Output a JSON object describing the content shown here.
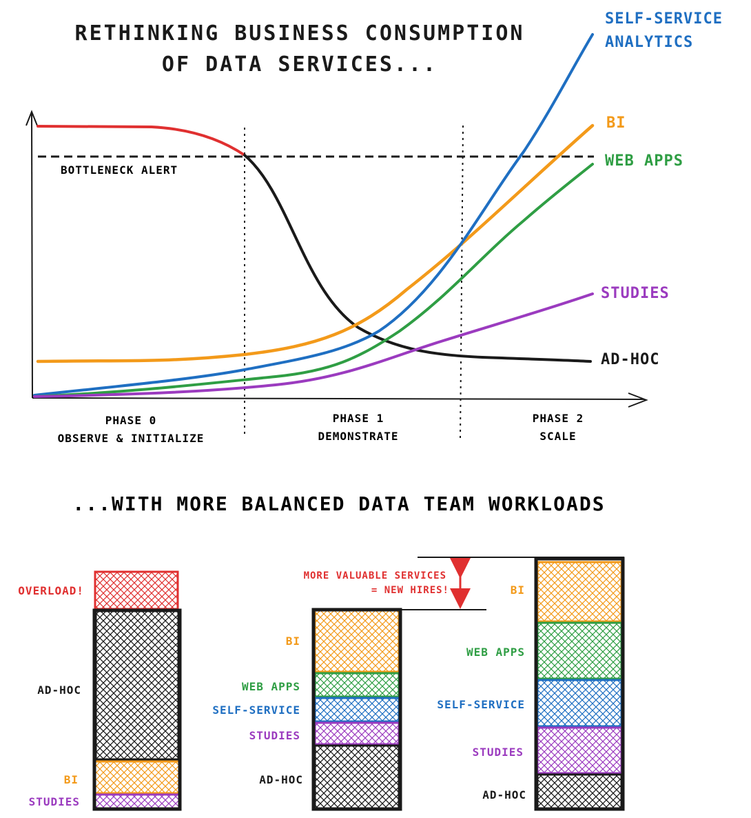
{
  "titles": {
    "line1": "RETHINKING BUSINESS CONSUMPTION",
    "line2": "OF DATA SERVICES...",
    "section2": "...WITH MORE BALANCED DATA TEAM WORKLOADS"
  },
  "top_chart": {
    "bottleneck_label": "BOTTLENECK ALERT",
    "series": {
      "self_service_1": "SELF-SERVICE",
      "self_service_2": "ANALYTICS",
      "bi": "BI",
      "web_apps": "WEB APPS",
      "studies": "STUDIES",
      "ad_hoc": "AD-HOC"
    },
    "phases": [
      {
        "name": "PHASE 0",
        "desc": "OBSERVE & INITIALIZE"
      },
      {
        "name": "PHASE 1",
        "desc": "DEMONSTRATE"
      },
      {
        "name": "PHASE 2",
        "desc": "SCALE"
      }
    ]
  },
  "bars": {
    "bar1": {
      "overload": "OVERLOAD!",
      "ad_hoc": "AD-HOC",
      "bi": "BI",
      "studies": "STUDIES"
    },
    "bar2": {
      "bi": "BI",
      "web_apps": "WEB APPS",
      "self_service": "SELF-SERVICE",
      "studies": "STUDIES",
      "ad_hoc": "AD-HOC"
    },
    "annotation_1": "MORE VALUABLE SERVICES",
    "annotation_2": "= NEW HIRES!",
    "bar3": {
      "bi": "BI",
      "web_apps": "WEB APPS",
      "self_service": "SELF-SERVICE",
      "studies": "STUDIES",
      "ad_hoc": "AD-HOC"
    }
  },
  "colors": {
    "red": "#e03030",
    "blue": "#1f6fc2",
    "orange": "#f39a1a",
    "green": "#2f9e44",
    "purple": "#9b3bbf",
    "black": "#1a1a1a"
  }
}
